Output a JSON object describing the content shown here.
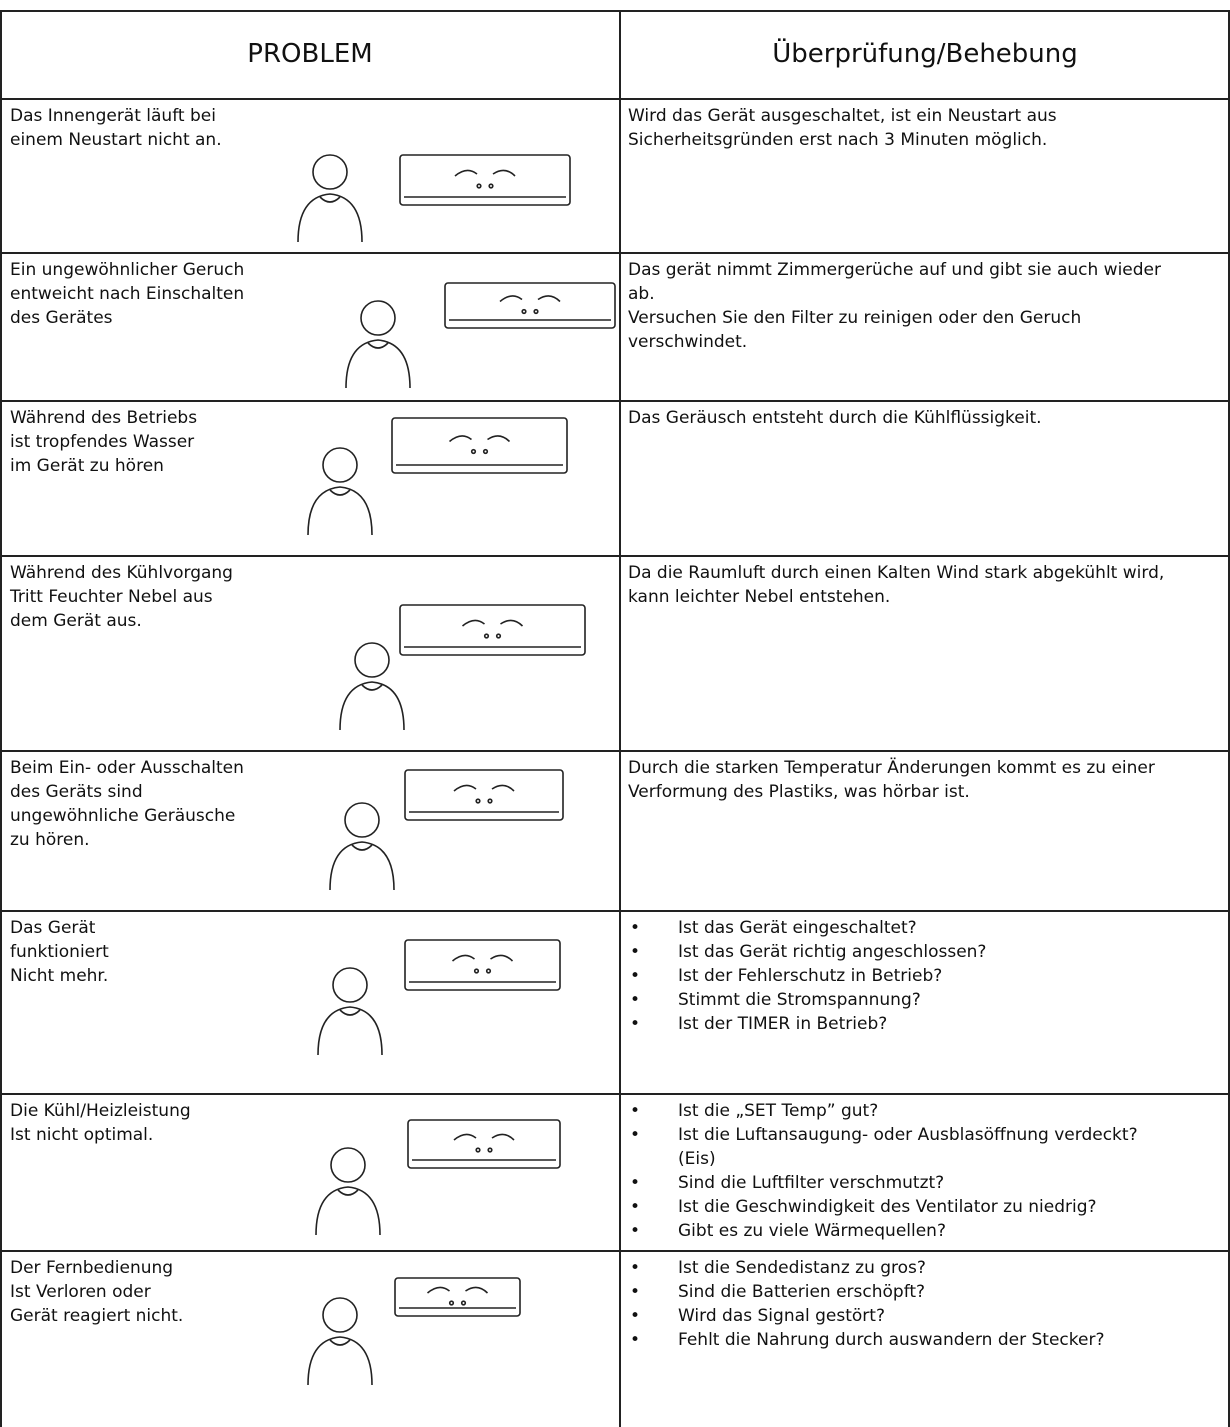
{
  "header": {
    "problem": "PROBLEM",
    "solution": "Überprüfung/Behebung"
  },
  "rows": [
    {
      "problem": [
        "Das Innengerät läuft bei",
        "einem Neustart nicht an."
      ],
      "solution": [
        "Wird das Gerät ausgeschaltet, ist ein Neustart aus",
        "Sicherheitsgründen erst nach 3 Minuten möglich."
      ]
    },
    {
      "problem": [
        "Ein ungewöhnlicher Geruch",
        "entweicht nach Einschalten",
        "des Gerätes"
      ],
      "solution": [
        "Das gerät nimmt Zimmergerüche auf und gibt sie auch wieder",
        "ab.",
        "Versuchen Sie den Filter zu reinigen oder den Geruch",
        "verschwindet."
      ]
    },
    {
      "problem": [
        "Während des Betriebs",
        "ist tropfendes Wasser",
        "im Gerät zu hören"
      ],
      "solution": [
        "Das Geräusch entsteht durch die Kühlflüssigkeit."
      ]
    },
    {
      "problem": [
        "Während des Kühlvorgang",
        "Tritt Feuchter Nebel aus",
        "dem Gerät aus."
      ],
      "solution": [
        "Da die Raumluft durch einen Kalten Wind stark abgekühlt wird,",
        "kann leichter Nebel entstehen."
      ]
    },
    {
      "problem": [
        "Beim Ein- oder Ausschalten",
        "des Geräts sind",
        "ungewöhnliche Geräusche",
        "zu hören."
      ],
      "solution": [
        "Durch die starken Temperatur Änderungen kommt es zu einer",
        "Verformung des Plastiks, was hörbar ist."
      ]
    },
    {
      "problem": [
        "Das Gerät",
        "funktioniert",
        "Nicht mehr."
      ],
      "checks": [
        [
          "Ist das Gerät eingeschaltet?"
        ],
        [
          "Ist das Gerät richtig angeschlossen?"
        ],
        [
          "Ist der Fehlerschutz in Betrieb?"
        ],
        [
          "Stimmt die Stromspannung?"
        ],
        [
          "Ist der TIMER in Betrieb?"
        ]
      ]
    },
    {
      "problem": [
        "Die Kühl/Heizleistung",
        "Ist nicht optimal."
      ],
      "checks": [
        [
          "Ist die „SET Temp” gut?"
        ],
        [
          "Ist die Luftansaugung- oder Ausblasöffnung verdeckt?",
          "(Eis)"
        ],
        [
          "Sind die Luftfilter verschmutzt?"
        ],
        [
          "Ist die Geschwindigkeit des Ventilator zu niedrig?"
        ],
        [
          "Gibt es zu viele Wärmequellen?"
        ]
      ]
    },
    {
      "problem": [
        "Der Fernbedienung",
        "Ist Verloren oder",
        "Gerät reagiert nicht."
      ],
      "checks": [
        [
          "Ist die Sendedistanz zu gros?"
        ],
        [
          "Sind die Batterien erschöpft?"
        ],
        [
          "Wird das Signal gestört?"
        ],
        [
          "Fehlt die Nahrung durch auswandern der Stecker?"
        ]
      ]
    }
  ]
}
